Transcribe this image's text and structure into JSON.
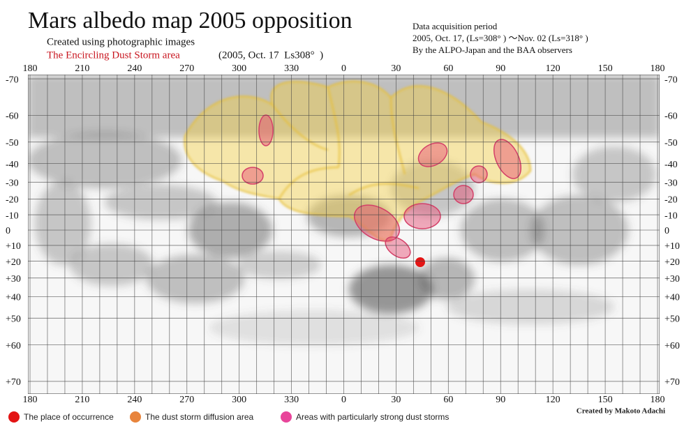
{
  "title": "Mars albedo map 2005 opposition",
  "subtitle": "Created using photographic images",
  "storm_note": "The Encircling Dust Storm area",
  "storm_date": "(2005, Oct. 17  Ls308°  )",
  "acquisition": [
    "Data acquisition period",
    "2005, Oct. 17, (Ls=308° ) ～Nov. 02 (Ls=318° )",
    "By the ALPO-Japan and the BAA observers"
  ],
  "map": {
    "longitude_ticks": [
      180,
      210,
      240,
      270,
      300,
      330,
      0,
      30,
      60,
      90,
      120,
      150,
      180
    ],
    "latitude_ticks": [
      -70,
      -60,
      -50,
      -40,
      -30,
      -20,
      -10,
      0,
      {
        "value": 10,
        "label": "+10"
      },
      {
        "value": 20,
        "label": "+20"
      },
      {
        "value": 30,
        "label": "+30"
      },
      {
        "value": 40,
        "label": "+40"
      },
      {
        "value": 50,
        "label": "+50"
      },
      {
        "value": 60,
        "label": "+60"
      },
      {
        "value": 70,
        "label": "+70"
      }
    ]
  },
  "legend": [
    {
      "label": "The place of occurrence",
      "color": "#e31414"
    },
    {
      "label": "The dust storm diffusion area",
      "color": "#e8843c"
    },
    {
      "label": "Areas with particularly strong dust storms",
      "color": "#e8459a"
    }
  ],
  "credit": "Created by Makoto Adachi"
}
